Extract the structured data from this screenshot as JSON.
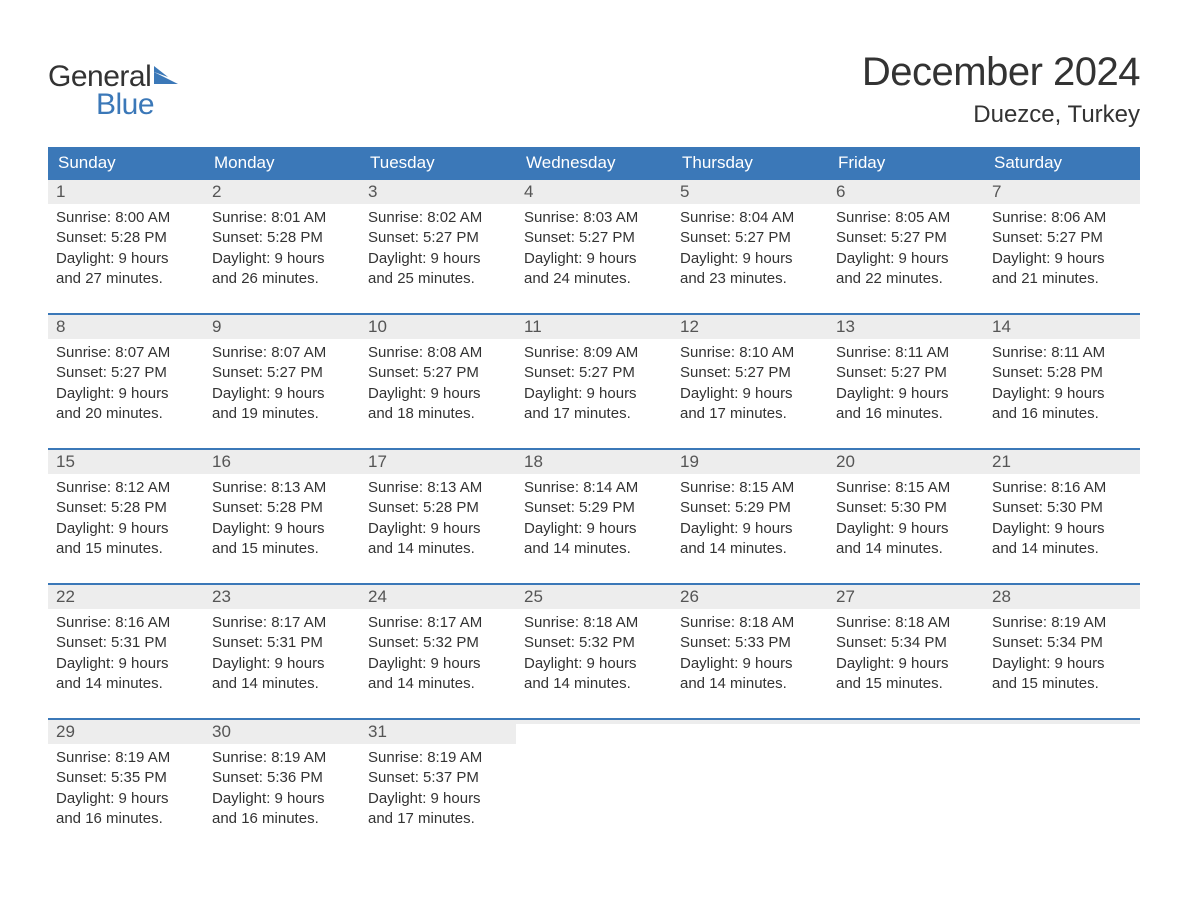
{
  "logo": {
    "word1": "General",
    "word2": "Blue",
    "flag_color": "#3b78b8"
  },
  "title": "December 2024",
  "location": "Duezce, Turkey",
  "colors": {
    "header_bg": "#3b78b8",
    "header_text": "#ffffff",
    "daynum_bg": "#ededed",
    "week_border": "#3b78b8",
    "body_text": "#333333",
    "daynum_text": "#555555",
    "page_bg": "#ffffff"
  },
  "weekdays": [
    "Sunday",
    "Monday",
    "Tuesday",
    "Wednesday",
    "Thursday",
    "Friday",
    "Saturday"
  ],
  "weeks": [
    [
      {
        "n": "1",
        "sunrise": "8:00 AM",
        "sunset": "5:28 PM",
        "daylight": "9 hours and 27 minutes."
      },
      {
        "n": "2",
        "sunrise": "8:01 AM",
        "sunset": "5:28 PM",
        "daylight": "9 hours and 26 minutes."
      },
      {
        "n": "3",
        "sunrise": "8:02 AM",
        "sunset": "5:27 PM",
        "daylight": "9 hours and 25 minutes."
      },
      {
        "n": "4",
        "sunrise": "8:03 AM",
        "sunset": "5:27 PM",
        "daylight": "9 hours and 24 minutes."
      },
      {
        "n": "5",
        "sunrise": "8:04 AM",
        "sunset": "5:27 PM",
        "daylight": "9 hours and 23 minutes."
      },
      {
        "n": "6",
        "sunrise": "8:05 AM",
        "sunset": "5:27 PM",
        "daylight": "9 hours and 22 minutes."
      },
      {
        "n": "7",
        "sunrise": "8:06 AM",
        "sunset": "5:27 PM",
        "daylight": "9 hours and 21 minutes."
      }
    ],
    [
      {
        "n": "8",
        "sunrise": "8:07 AM",
        "sunset": "5:27 PM",
        "daylight": "9 hours and 20 minutes."
      },
      {
        "n": "9",
        "sunrise": "8:07 AM",
        "sunset": "5:27 PM",
        "daylight": "9 hours and 19 minutes."
      },
      {
        "n": "10",
        "sunrise": "8:08 AM",
        "sunset": "5:27 PM",
        "daylight": "9 hours and 18 minutes."
      },
      {
        "n": "11",
        "sunrise": "8:09 AM",
        "sunset": "5:27 PM",
        "daylight": "9 hours and 17 minutes."
      },
      {
        "n": "12",
        "sunrise": "8:10 AM",
        "sunset": "5:27 PM",
        "daylight": "9 hours and 17 minutes."
      },
      {
        "n": "13",
        "sunrise": "8:11 AM",
        "sunset": "5:27 PM",
        "daylight": "9 hours and 16 minutes."
      },
      {
        "n": "14",
        "sunrise": "8:11 AM",
        "sunset": "5:28 PM",
        "daylight": "9 hours and 16 minutes."
      }
    ],
    [
      {
        "n": "15",
        "sunrise": "8:12 AM",
        "sunset": "5:28 PM",
        "daylight": "9 hours and 15 minutes."
      },
      {
        "n": "16",
        "sunrise": "8:13 AM",
        "sunset": "5:28 PM",
        "daylight": "9 hours and 15 minutes."
      },
      {
        "n": "17",
        "sunrise": "8:13 AM",
        "sunset": "5:28 PM",
        "daylight": "9 hours and 14 minutes."
      },
      {
        "n": "18",
        "sunrise": "8:14 AM",
        "sunset": "5:29 PM",
        "daylight": "9 hours and 14 minutes."
      },
      {
        "n": "19",
        "sunrise": "8:15 AM",
        "sunset": "5:29 PM",
        "daylight": "9 hours and 14 minutes."
      },
      {
        "n": "20",
        "sunrise": "8:15 AM",
        "sunset": "5:30 PM",
        "daylight": "9 hours and 14 minutes."
      },
      {
        "n": "21",
        "sunrise": "8:16 AM",
        "sunset": "5:30 PM",
        "daylight": "9 hours and 14 minutes."
      }
    ],
    [
      {
        "n": "22",
        "sunrise": "8:16 AM",
        "sunset": "5:31 PM",
        "daylight": "9 hours and 14 minutes."
      },
      {
        "n": "23",
        "sunrise": "8:17 AM",
        "sunset": "5:31 PM",
        "daylight": "9 hours and 14 minutes."
      },
      {
        "n": "24",
        "sunrise": "8:17 AM",
        "sunset": "5:32 PM",
        "daylight": "9 hours and 14 minutes."
      },
      {
        "n": "25",
        "sunrise": "8:18 AM",
        "sunset": "5:32 PM",
        "daylight": "9 hours and 14 minutes."
      },
      {
        "n": "26",
        "sunrise": "8:18 AM",
        "sunset": "5:33 PM",
        "daylight": "9 hours and 14 minutes."
      },
      {
        "n": "27",
        "sunrise": "8:18 AM",
        "sunset": "5:34 PM",
        "daylight": "9 hours and 15 minutes."
      },
      {
        "n": "28",
        "sunrise": "8:19 AM",
        "sunset": "5:34 PM",
        "daylight": "9 hours and 15 minutes."
      }
    ],
    [
      {
        "n": "29",
        "sunrise": "8:19 AM",
        "sunset": "5:35 PM",
        "daylight": "9 hours and 16 minutes."
      },
      {
        "n": "30",
        "sunrise": "8:19 AM",
        "sunset": "5:36 PM",
        "daylight": "9 hours and 16 minutes."
      },
      {
        "n": "31",
        "sunrise": "8:19 AM",
        "sunset": "5:37 PM",
        "daylight": "9 hours and 17 minutes."
      },
      null,
      null,
      null,
      null
    ]
  ],
  "labels": {
    "sunrise_prefix": "Sunrise: ",
    "sunset_prefix": "Sunset: ",
    "daylight_prefix": "Daylight: "
  }
}
